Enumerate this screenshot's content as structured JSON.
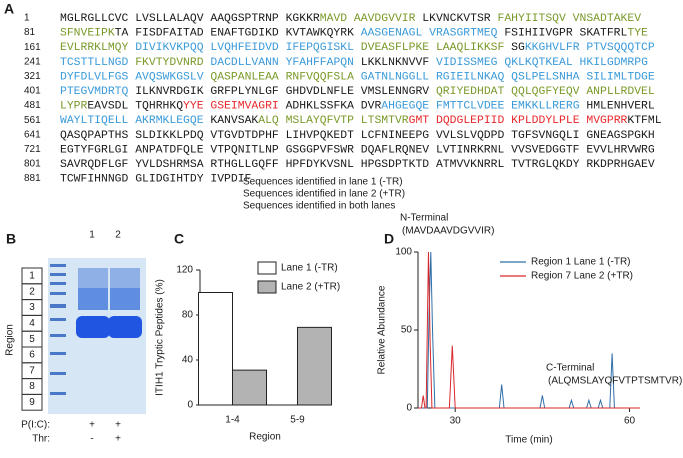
{
  "panel_labels": [
    "A",
    "B",
    "C",
    "D"
  ],
  "sequence": {
    "rows": [
      {
        "number": 1,
        "segments": [
          {
            "text": "MGLRGLLCVC LVSLLALAQV AAQGSPTRNP KGKKR",
            "color": "#1a1a1a"
          },
          {
            "text": "MAVD AAVDGVVIR",
            "color": "#7a9a2a"
          },
          {
            "text": " LKVNCKVTSR ",
            "color": "#1a1a1a"
          },
          {
            "text": "FAHYIITSQV VNSADTAKEV",
            "color": "#7a9a2a"
          }
        ]
      },
      {
        "number": 81,
        "segments": [
          {
            "text": "SFNVEIPK",
            "color": "#7a9a2a"
          },
          {
            "text": "TA FISDFAITAD ENAFTGDIKD KVTAWKQYRK ",
            "color": "#1a1a1a"
          },
          {
            "text": "AASGENAGL VRASGRTMEQ ",
            "color": "#3a9ad9"
          },
          {
            "text": "FSIHIIVGPR SKATFRL",
            "color": "#1a1a1a"
          },
          {
            "text": "TYE",
            "color": "#7a9a2a"
          }
        ]
      },
      {
        "number": 161,
        "segments": [
          {
            "text": "EVLRRKLMQY ",
            "color": "#7a9a2a"
          },
          {
            "text": "DIVIKVKPQQ LVQHFEIDVD IFEPQGISKL ",
            "color": "#3a9ad9"
          },
          {
            "text": "DVEASFLPKE LAAQLIKKSF ",
            "color": "#7a9a2a"
          },
          {
            "text": "SG",
            "color": "#1a1a1a"
          },
          {
            "text": "KKGHVLFR PTVSQQQTCP",
            "color": "#3a9ad9"
          }
        ]
      },
      {
        "number": 241,
        "segments": [
          {
            "text": "TCSTTLLNGD ",
            "color": "#3a9ad9"
          },
          {
            "text": "FKVTYDVNRD ",
            "color": "#7a9a2a"
          },
          {
            "text": "DACDLLVANN YFAHFFAPQN ",
            "color": "#3a9ad9"
          },
          {
            "text": "LKKLNKNVVF ",
            "color": "#1a1a1a"
          },
          {
            "text": "VIDISSMEG QKLKQTKEAL HKILGDMRPG",
            "color": "#3a9ad9"
          }
        ]
      },
      {
        "number": 321,
        "segments": [
          {
            "text": "DYFDLVLFGS AVQSWKGSLV ",
            "color": "#3a9ad9"
          },
          {
            "text": "QASPANLEAA RNFVQQFSLA ",
            "color": "#7a9a2a"
          },
          {
            "text": "GATNLNGGLL RGIEILNKAQ QSLPELSNHA SILIMLTDGE",
            "color": "#3a9ad9"
          }
        ]
      },
      {
        "number": 401,
        "segments": [
          {
            "text": "PTEGVMDRTQ ",
            "color": "#3a9ad9"
          },
          {
            "text": "ILKNVRDGIK GRFPLYNLGF GHDVDLNFLE VMSLENNGRV ",
            "color": "#1a1a1a"
          },
          {
            "text": "QRIYEDHDAT QQLQGFYEQV ANPLLRDVEL",
            "color": "#7a9a2a"
          }
        ]
      },
      {
        "number": 481,
        "segments": [
          {
            "text": "LYPR",
            "color": "#7a9a2a"
          },
          {
            "text": "EAVSDL TQHRHKQ",
            "color": "#1a1a1a"
          },
          {
            "text": "YYE GSEIMVAGRI ",
            "color": "#e8282b"
          },
          {
            "text": "ADHKLSSFKA DVR",
            "color": "#1a1a1a"
          },
          {
            "text": "AHGEGQE FMTTCLVDEE EMKKLLRERG ",
            "color": "#3a9ad9"
          },
          {
            "text": "HMLENHVERL",
            "color": "#1a1a1a"
          }
        ]
      },
      {
        "number": 561,
        "segments": [
          {
            "text": "WAYLTIQELL AKRMKLEGQE ",
            "color": "#3a9ad9"
          },
          {
            "text": "KANVSAK",
            "color": "#1a1a1a"
          },
          {
            "text": "ALQ MSLAYQFVTP LTSMTVR",
            "color": "#7a9a2a"
          },
          {
            "text": "GMT DQDGLEPIID KPLDDYLPLE MVGPRR",
            "color": "#e8282b"
          },
          {
            "text": "KTFML",
            "color": "#1a1a1a"
          }
        ]
      },
      {
        "number": 641,
        "segments": [
          {
            "text": "QASQPAPTHS SLDIKKLPDQ VTGVDTDPHF LIHVPQKEDT LCFNINEEPG VVLSLVQDPD TGFSVNGQLI GNEAGSPGKH",
            "color": "#1a1a1a"
          }
        ]
      },
      {
        "number": 721,
        "segments": [
          {
            "text": "EGTYFGRLGI ANPATDFQLE VTPQNITLNP GSGGPVFSWR DQAFLRQNEV LVTINRKRNL VVSVEDGGTF EVVLHRVWRG",
            "color": "#1a1a1a"
          }
        ]
      },
      {
        "number": 801,
        "segments": [
          {
            "text": "SAVRQDFLGF YVLDSHRMSA RTHGLLGQFF HPFDYKVSNL HPGSDPTKTD ATMVVKNRRL TVTRGLQKDY RKDPRHGAEV",
            "color": "#1a1a1a"
          }
        ]
      },
      {
        "number": 881,
        "segments": [
          {
            "text": "TCWFIHNNGD GLIDGIHTDY IVPDIF",
            "color": "#1a1a1a"
          }
        ]
      }
    ],
    "legend": [
      {
        "text": "Sequences identified in lane 1 (-TR)",
        "color": "#3a9ad9"
      },
      {
        "text": "Sequences identified in lane 2 (+TR)",
        "color": "#e8282b"
      },
      {
        "text": "Sequences identified in both lanes",
        "color": "#7a9a2a"
      }
    ]
  },
  "gel": {
    "lane_labels": [
      "1",
      "2"
    ],
    "axis_label": "Region",
    "regions": [
      "1",
      "2",
      "3",
      "4",
      "5",
      "6",
      "7",
      "8",
      "9"
    ],
    "conditions": [
      {
        "label": "P(I:C):",
        "lanes": [
          "+",
          "+"
        ]
      },
      {
        "label": "Thr:",
        "lanes": [
          "-",
          "+"
        ]
      }
    ]
  },
  "chart_data": [
    {
      "type": "bar",
      "xlabel": "Region",
      "ylabel": "ITIH1 Tryptic Peptides (%)",
      "categories": [
        "1-4",
        "5-9"
      ],
      "series": [
        {
          "name": "Lane 1 (-TR)",
          "color": "#ffffff",
          "values": [
            100,
            0
          ]
        },
        {
          "name": "Lane 2 (+TR)",
          "color": "#b3b3b3",
          "values": [
            31,
            69
          ]
        }
      ],
      "ylim": [
        0,
        120
      ],
      "yticks": [
        0,
        40,
        80,
        120
      ]
    },
    {
      "type": "line",
      "xlabel": "Time (min)",
      "ylabel": "Relative Abundance",
      "xlim": [
        23.6,
        61.8
      ],
      "xticks": [
        30,
        60
      ],
      "ylim": [
        0,
        100
      ],
      "yticks": [
        0,
        50,
        100
      ],
      "annotations": [
        {
          "title": "N-Terminal",
          "peptide": "(MAVDAAVDGVVIR)",
          "color": "#7a9a2a"
        },
        {
          "title": "C-Terminal",
          "peptide": "(ALQMSLAYQFVTPTSMTVR)",
          "color": "#7a9a2a"
        }
      ],
      "series": [
        {
          "name": "Region 1 Lane 1 (-TR)",
          "color": "#2f6fa8",
          "x": [
            23.6,
            25.2,
            25.5,
            25.8,
            26.1,
            26.5,
            30,
            37.6,
            38,
            38.4,
            44.6,
            45,
            45.4,
            49.6,
            50,
            50.4,
            52.6,
            53,
            53.4,
            54.6,
            55,
            55.4,
            56.6,
            57,
            57.4,
            61.8
          ],
          "values": [
            0,
            0,
            60,
            100,
            50,
            0,
            0,
            0,
            15,
            0,
            0,
            8,
            0,
            0,
            5,
            0,
            0,
            5,
            0,
            0,
            5,
            0,
            0,
            35,
            0,
            0
          ]
        },
        {
          "name": "Region 7 Lane 2 (+TR)",
          "color": "#d9282b",
          "x": [
            23.6,
            24.2,
            24.5,
            24.8,
            25,
            25.4,
            25.7,
            26,
            26.4,
            29,
            29.5,
            30,
            31,
            61.8
          ],
          "values": [
            0,
            0,
            8,
            0,
            0,
            100,
            40,
            0,
            0,
            0,
            40,
            0,
            0,
            0
          ]
        }
      ]
    }
  ]
}
